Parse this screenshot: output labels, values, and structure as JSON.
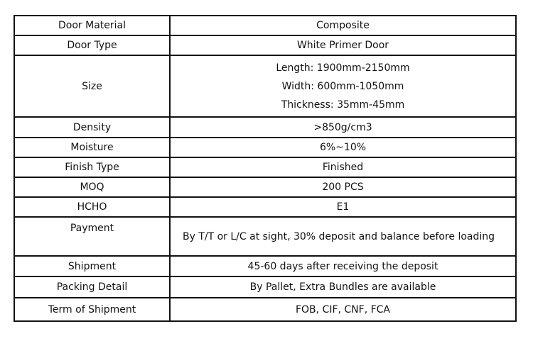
{
  "rows": [
    {
      "label": "Door Material",
      "value": "Composite"
    },
    {
      "label": "Door Type",
      "value": "White Primer Door"
    },
    {
      "label": "Size",
      "lines": [
        "Length: 1900mm-2150mm",
        "Width: 600mm-1050mm",
        "Thickness: 35mm-45mm"
      ]
    },
    {
      "label": "Density",
      "value": ">850g/cm3"
    },
    {
      "label": "Moisture",
      "value": "6%~10%"
    },
    {
      "label": "Finish Type",
      "value": "Finished"
    },
    {
      "label": "MOQ",
      "value": "200 PCS"
    },
    {
      "label": "HCHO",
      "value": "E1"
    },
    {
      "label": "Payment",
      "value": "By T/T or L/C at sight, 30% deposit and balance before loading"
    },
    {
      "label": "Shipment",
      "value": "45-60 days after receiving the deposit"
    },
    {
      "label": "Packing Detail",
      "value": "By Pallet, Extra Bundles are available"
    },
    {
      "label": "Term of Shipment",
      "value": "FOB, CIF, CNF, FCA"
    }
  ]
}
